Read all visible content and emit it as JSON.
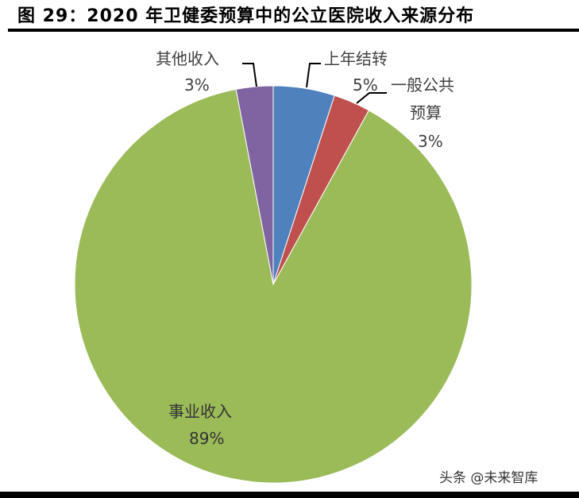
{
  "title": "图 29：2020 年卫健委预算中的公立医院收入来源分布",
  "watermark": "头条 @未来智库",
  "chart_data": {
    "type": "pie",
    "title": "2020 年卫健委预算中的公立医院收入来源分布",
    "figure_label": "图 29",
    "slices": [
      {
        "label": "上年结转",
        "value": 5,
        "display": "5%",
        "color": "#4F81BD"
      },
      {
        "label": "一般公共预算",
        "value": 3,
        "display": "3%",
        "color": "#C0504D"
      },
      {
        "label": "事业收入",
        "value": 89,
        "display": "89%",
        "color": "#9BBB59"
      },
      {
        "label": "其他收入",
        "value": 3,
        "display": "3%",
        "color": "#8064A2"
      }
    ],
    "start_angle": "12 o'clock, clockwise",
    "legend": "none (data labels with leader lines)"
  },
  "labels": {
    "carryover": {
      "name": "上年结转",
      "pct": "5%"
    },
    "general_budget": {
      "name1": "一般公共",
      "name2": "预算",
      "pct": "3%"
    },
    "business": {
      "name": "事业收入",
      "pct": "89%"
    },
    "other": {
      "name": "其他收入",
      "pct": "3%"
    }
  }
}
